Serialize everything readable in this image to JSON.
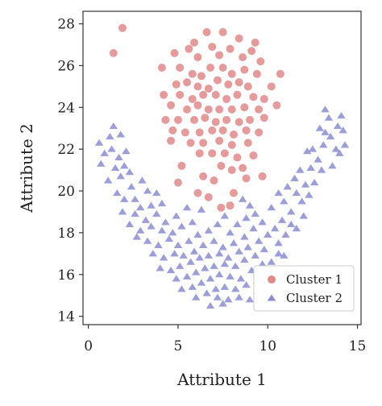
{
  "chart_data": {
    "type": "scatter",
    "xlabel": "Attribute 1",
    "ylabel": "Attribute 2",
    "xlim": [
      -0.3,
      15.2
    ],
    "ylim": [
      13.6,
      28.6
    ],
    "xticks": [
      0,
      5,
      10,
      15
    ],
    "yticks": [
      14,
      16,
      18,
      20,
      22,
      24,
      26,
      28
    ],
    "grid": false,
    "legend_position": "bottom-right",
    "series": [
      {
        "name": "Cluster 1",
        "marker": "circle",
        "color": "#e08a8a",
        "points": [
          [
            1.9,
            27.8
          ],
          [
            1.4,
            26.6
          ],
          [
            6.6,
            27.6
          ],
          [
            7.5,
            27.6
          ],
          [
            5.9,
            27.1
          ],
          [
            8.4,
            27.3
          ],
          [
            9.3,
            27.1
          ],
          [
            4.8,
            26.6
          ],
          [
            5.6,
            26.8
          ],
          [
            6.1,
            26.4
          ],
          [
            6.9,
            26.9
          ],
          [
            7.3,
            26.5
          ],
          [
            7.9,
            26.8
          ],
          [
            8.6,
            26.4
          ],
          [
            9.1,
            26.7
          ],
          [
            9.6,
            26.2
          ],
          [
            4.1,
            25.9
          ],
          [
            5.1,
            25.9
          ],
          [
            5.8,
            25.6
          ],
          [
            6.3,
            25.5
          ],
          [
            6.8,
            25.9
          ],
          [
            7.5,
            25.9
          ],
          [
            8.0,
            25.6
          ],
          [
            8.7,
            25.8
          ],
          [
            9.4,
            25.6
          ],
          [
            10.7,
            25.6
          ],
          [
            4.9,
            25.1
          ],
          [
            5.5,
            25.2
          ],
          [
            6.1,
            25.0
          ],
          [
            6.7,
            24.9
          ],
          [
            7.2,
            25.3
          ],
          [
            7.8,
            25.1
          ],
          [
            8.4,
            25.2
          ],
          [
            8.9,
            25.0
          ],
          [
            10.2,
            25.0
          ],
          [
            4.2,
            24.6
          ],
          [
            5.1,
            24.6
          ],
          [
            5.8,
            24.4
          ],
          [
            6.4,
            24.6
          ],
          [
            7.1,
            24.6
          ],
          [
            7.7,
            24.4
          ],
          [
            8.3,
            24.6
          ],
          [
            9.2,
            24.5
          ],
          [
            9.8,
            24.4
          ],
          [
            4.6,
            24.1
          ],
          [
            5.5,
            23.9
          ],
          [
            6.1,
            24.1
          ],
          [
            6.7,
            23.9
          ],
          [
            7.3,
            23.9
          ],
          [
            8.0,
            23.9
          ],
          [
            8.7,
            24.0
          ],
          [
            9.5,
            23.9
          ],
          [
            10.5,
            24.1
          ],
          [
            4.3,
            23.4
          ],
          [
            5.0,
            23.4
          ],
          [
            5.9,
            23.4
          ],
          [
            6.5,
            23.5
          ],
          [
            7.1,
            23.3
          ],
          [
            7.7,
            23.4
          ],
          [
            8.4,
            23.3
          ],
          [
            9.0,
            23.4
          ],
          [
            9.8,
            23.5
          ],
          [
            4.7,
            22.9
          ],
          [
            5.4,
            22.8
          ],
          [
            6.2,
            22.8
          ],
          [
            6.9,
            22.9
          ],
          [
            7.5,
            22.9
          ],
          [
            8.1,
            22.7
          ],
          [
            8.8,
            22.9
          ],
          [
            9.5,
            22.8
          ],
          [
            4.6,
            22.4
          ],
          [
            5.7,
            22.3
          ],
          [
            6.4,
            22.3
          ],
          [
            7.3,
            22.4
          ],
          [
            8.0,
            22.2
          ],
          [
            8.9,
            22.3
          ],
          [
            6.2,
            21.8
          ],
          [
            6.9,
            21.8
          ],
          [
            7.6,
            21.8
          ],
          [
            8.3,
            21.6
          ],
          [
            9.2,
            21.7
          ],
          [
            5.2,
            21.2
          ],
          [
            7.4,
            21.2
          ],
          [
            8.0,
            21.0
          ],
          [
            8.6,
            21.1
          ],
          [
            6.4,
            20.7
          ],
          [
            7.0,
            20.5
          ],
          [
            5.0,
            20.4
          ],
          [
            8.8,
            20.6
          ],
          [
            9.7,
            20.7
          ],
          [
            6.1,
            19.9
          ],
          [
            8.1,
            19.9
          ],
          [
            6.7,
            19.7
          ],
          [
            7.9,
            19.3
          ],
          [
            7.4,
            19.2
          ]
        ]
      },
      {
        "name": "Cluster 2",
        "marker": "triangle",
        "color": "#8c8cd0",
        "points": [
          [
            0.6,
            22.3
          ],
          [
            1.2,
            22.6
          ],
          [
            1.4,
            23.1
          ],
          [
            1.8,
            22.7
          ],
          [
            0.9,
            21.8
          ],
          [
            1.3,
            22.0
          ],
          [
            1.7,
            21.6
          ],
          [
            2.1,
            21.9
          ],
          [
            0.7,
            21.3
          ],
          [
            1.5,
            21.1
          ],
          [
            2.0,
            21.2
          ],
          [
            2.3,
            20.9
          ],
          [
            1.8,
            20.7
          ],
          [
            1.1,
            20.5
          ],
          [
            2.4,
            20.2
          ],
          [
            3.0,
            20.5
          ],
          [
            1.6,
            19.9
          ],
          [
            2.0,
            19.6
          ],
          [
            3.3,
            20.0
          ],
          [
            2.6,
            19.6
          ],
          [
            3.8,
            19.9
          ],
          [
            4.1,
            19.4
          ],
          [
            2.9,
            19.2
          ],
          [
            3.5,
            19.3
          ],
          [
            1.9,
            19.0
          ],
          [
            2.6,
            18.9
          ],
          [
            3.2,
            18.6
          ],
          [
            3.8,
            18.9
          ],
          [
            4.3,
            18.5
          ],
          [
            4.9,
            18.8
          ],
          [
            2.3,
            18.4
          ],
          [
            2.9,
            18.1
          ],
          [
            3.5,
            18.3
          ],
          [
            4.1,
            18.1
          ],
          [
            4.7,
            18.0
          ],
          [
            5.2,
            18.3
          ],
          [
            5.8,
            18.5
          ],
          [
            6.3,
            19.1
          ],
          [
            5.5,
            19.2
          ],
          [
            2.7,
            17.8
          ],
          [
            3.3,
            17.6
          ],
          [
            3.9,
            17.4
          ],
          [
            4.5,
            17.7
          ],
          [
            5.0,
            17.4
          ],
          [
            5.6,
            17.6
          ],
          [
            6.1,
            17.9
          ],
          [
            6.7,
            18.1
          ],
          [
            7.2,
            18.4
          ],
          [
            7.6,
            18.8
          ],
          [
            8.3,
            18.4
          ],
          [
            8.8,
            18.7
          ],
          [
            9.3,
            18.9
          ],
          [
            9.0,
            19.3
          ],
          [
            8.6,
            19.6
          ],
          [
            7.9,
            18.0
          ],
          [
            3.6,
            17.0
          ],
          [
            4.2,
            16.8
          ],
          [
            4.8,
            17.0
          ],
          [
            5.3,
            16.9
          ],
          [
            5.9,
            17.1
          ],
          [
            6.4,
            17.4
          ],
          [
            7.0,
            17.6
          ],
          [
            7.5,
            17.3
          ],
          [
            8.1,
            17.5
          ],
          [
            8.7,
            17.8
          ],
          [
            9.2,
            18.2
          ],
          [
            9.7,
            18.5
          ],
          [
            4.0,
            16.3
          ],
          [
            4.6,
            16.2
          ],
          [
            5.1,
            16.4
          ],
          [
            5.7,
            16.6
          ],
          [
            6.2,
            16.8
          ],
          [
            6.7,
            16.9
          ],
          [
            7.3,
            17.0
          ],
          [
            7.8,
            16.8
          ],
          [
            8.4,
            17.1
          ],
          [
            8.9,
            17.3
          ],
          [
            9.5,
            17.6
          ],
          [
            10.0,
            17.9
          ],
          [
            4.9,
            15.8
          ],
          [
            5.5,
            15.9
          ],
          [
            6.0,
            16.1
          ],
          [
            6.5,
            16.3
          ],
          [
            7.0,
            16.4
          ],
          [
            7.6,
            16.5
          ],
          [
            8.2,
            16.4
          ],
          [
            8.7,
            16.7
          ],
          [
            9.3,
            16.9
          ],
          [
            9.8,
            17.2
          ],
          [
            5.2,
            15.3
          ],
          [
            5.8,
            15.4
          ],
          [
            6.3,
            15.6
          ],
          [
            6.8,
            15.8
          ],
          [
            7.3,
            16.0
          ],
          [
            7.9,
            15.9
          ],
          [
            8.5,
            15.8
          ],
          [
            9.1,
            16.2
          ],
          [
            9.7,
            16.5
          ],
          [
            10.2,
            16.6
          ],
          [
            6.0,
            14.9
          ],
          [
            6.6,
            15.1
          ],
          [
            7.1,
            15.3
          ],
          [
            7.6,
            15.4
          ],
          [
            8.2,
            15.3
          ],
          [
            8.8,
            15.5
          ],
          [
            9.4,
            15.7
          ],
          [
            7.2,
            14.9
          ],
          [
            7.8,
            14.8
          ],
          [
            8.4,
            14.9
          ],
          [
            6.8,
            14.5
          ],
          [
            9.0,
            14.8
          ],
          [
            7.5,
            14.6
          ],
          [
            10.4,
            18.2
          ],
          [
            10.8,
            18.6
          ],
          [
            11.3,
            19.0
          ],
          [
            10.9,
            19.5
          ],
          [
            11.6,
            19.9
          ],
          [
            12.1,
            20.3
          ],
          [
            11.5,
            20.6
          ],
          [
            12.4,
            21.1
          ],
          [
            12.8,
            21.5
          ],
          [
            12.2,
            21.9
          ],
          [
            13.1,
            22.2
          ],
          [
            13.5,
            22.6
          ],
          [
            12.9,
            23.0
          ],
          [
            13.9,
            23.1
          ],
          [
            13.4,
            23.5
          ],
          [
            13.2,
            23.9
          ],
          [
            14.1,
            23.6
          ],
          [
            14.2,
            22.9
          ],
          [
            13.8,
            22.0
          ],
          [
            13.0,
            21.0
          ],
          [
            12.6,
            20.4
          ],
          [
            11.9,
            19.5
          ],
          [
            11.3,
            18.4
          ],
          [
            10.6,
            17.5
          ],
          [
            11.0,
            17.9
          ],
          [
            12.3,
            19.8
          ],
          [
            13.6,
            21.2
          ],
          [
            14.0,
            21.8
          ],
          [
            10.2,
            19.2
          ],
          [
            10.6,
            19.9
          ],
          [
            11.1,
            20.2
          ],
          [
            11.8,
            21.0
          ],
          [
            12.5,
            22.0
          ],
          [
            13.2,
            22.8
          ],
          [
            12.0,
            18.8
          ],
          [
            11.6,
            18.2
          ],
          [
            10.9,
            16.9
          ],
          [
            10.2,
            16.1
          ],
          [
            9.9,
            15.6
          ],
          [
            9.4,
            15.2
          ],
          [
            10.6,
            17.0
          ],
          [
            14.3,
            22.2
          ]
        ]
      }
    ]
  }
}
